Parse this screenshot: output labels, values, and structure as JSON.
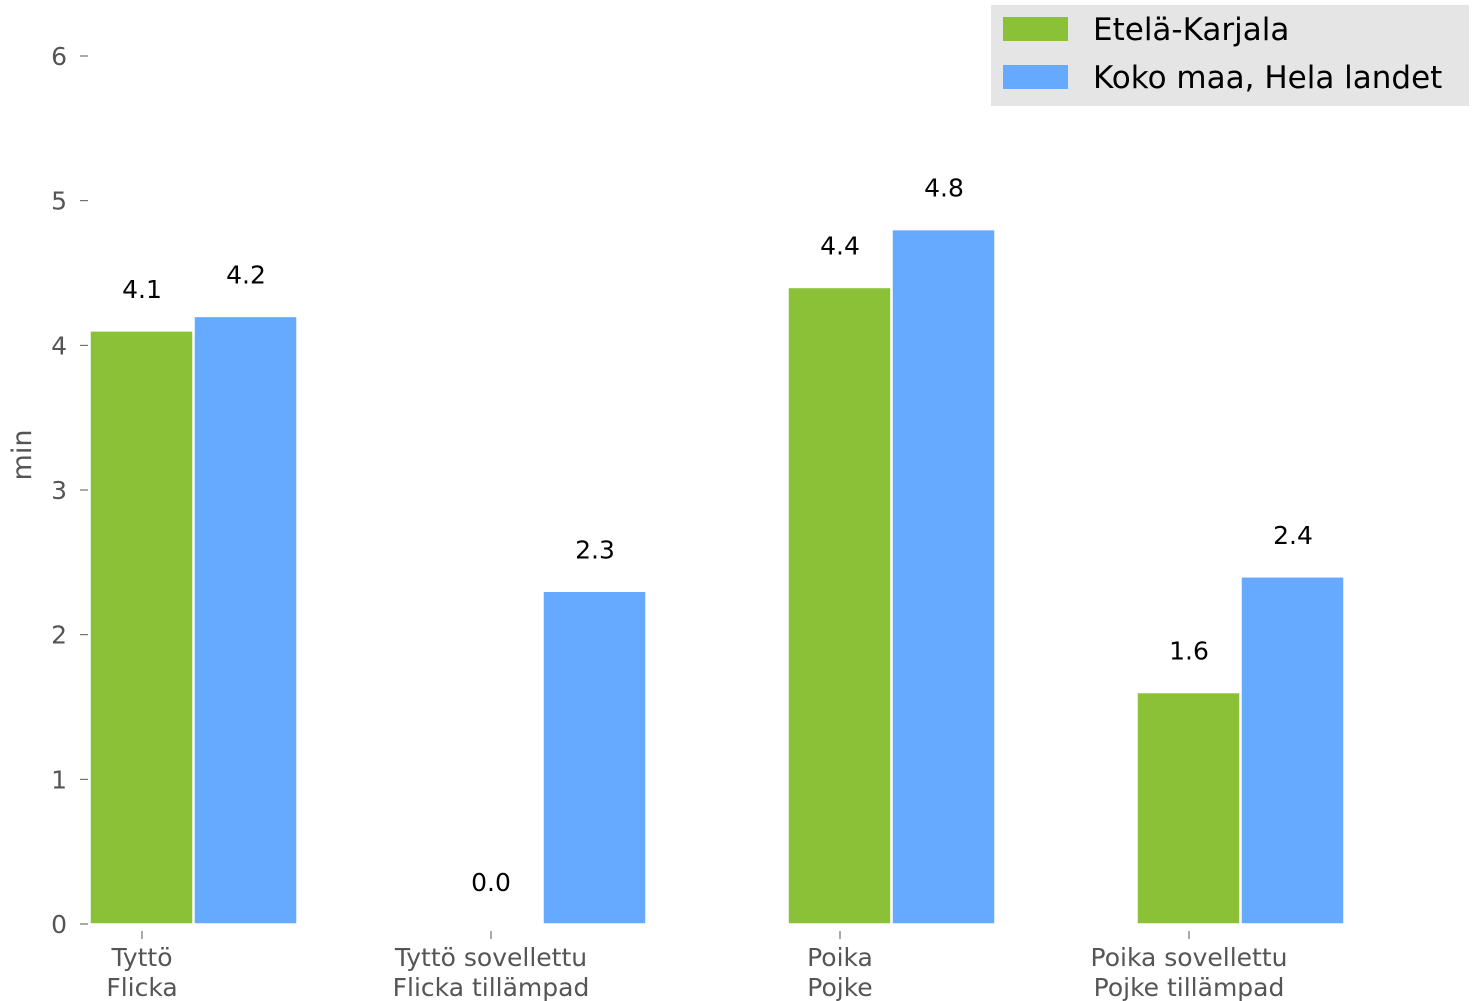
{
  "chart_data": {
    "type": "bar",
    "ylabel": "min",
    "ylim": [
      0,
      6
    ],
    "yticks": [
      "0",
      "1",
      "2",
      "3",
      "4",
      "5",
      "6"
    ],
    "grid": false,
    "legend_position": "top-right",
    "categories": [
      [
        "Tyttö",
        "Flicka"
      ],
      [
        "Tyttö sovellettu",
        "Flicka tillämpad"
      ],
      [
        "Poika",
        "Pojke"
      ],
      [
        "Poika sovellettu",
        "Pojke tillämpad"
      ]
    ],
    "series": [
      {
        "name": "Etelä-Karjala",
        "color": "#8bc136",
        "values": [
          4.1,
          0.0,
          4.4,
          1.6
        ],
        "labels": [
          "4.1",
          "0.0",
          "4.4",
          "1.6"
        ]
      },
      {
        "name": "Koko maa, Hela landet",
        "color": "#66aaff",
        "values": [
          4.2,
          2.3,
          4.8,
          2.4
        ],
        "labels": [
          "4.2",
          "2.3",
          "4.8",
          "2.4"
        ]
      }
    ]
  }
}
